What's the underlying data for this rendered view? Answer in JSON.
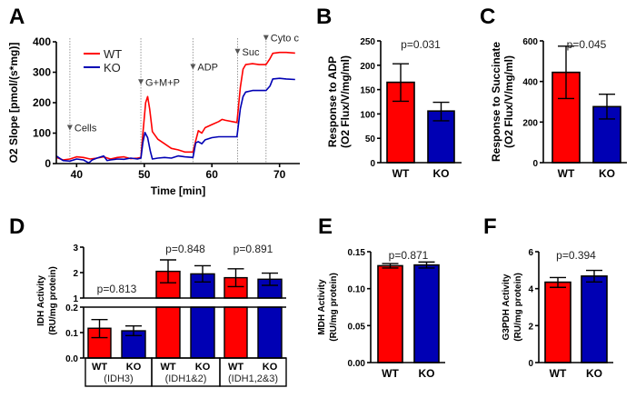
{
  "colors": {
    "wt": "#ff0000",
    "ko": "#0000b4",
    "marker": "#555555"
  },
  "chart_data": [
    {
      "id": "A",
      "type": "line",
      "panel_label": "A",
      "title": "",
      "xlabel": "Time [min]",
      "ylabel": "O2 Slope [pmol/(s*mg)]",
      "xlim": [
        37,
        73
      ],
      "ylim": [
        0,
        400
      ],
      "xticks": [
        40,
        50,
        60,
        70
      ],
      "yticks": [
        0,
        100,
        200,
        300,
        400
      ],
      "legend": {
        "position": "top-left",
        "entries": [
          "WT",
          "KO"
        ]
      },
      "annotations": [
        {
          "label": "Cells",
          "x": 39,
          "y": 100
        },
        {
          "label": "G+M+P",
          "x": 49.5,
          "y": 250
        },
        {
          "label": "ADP",
          "x": 57.2,
          "y": 300
        },
        {
          "label": "Suc",
          "x": 63.8,
          "y": 350
        },
        {
          "label": "Cyto c",
          "x": 68,
          "y": 395
        }
      ],
      "series": [
        {
          "name": "WT",
          "x": [
            37,
            38,
            39,
            40,
            41,
            42,
            43,
            44,
            45,
            46,
            47,
            48,
            49,
            49.5,
            49.8,
            50.2,
            50.5,
            50.8,
            51.2,
            52,
            53,
            54,
            55,
            56,
            57.2,
            57.6,
            58,
            58.5,
            59,
            60,
            61,
            61.5,
            62,
            63,
            63.7,
            64.2,
            64.6,
            65,
            66,
            67,
            68,
            68.6,
            69,
            70,
            71,
            72.3
          ],
          "y": [
            20,
            12,
            15,
            22,
            20,
            15,
            18,
            22,
            15,
            20,
            22,
            16,
            18,
            20,
            100,
            200,
            220,
            180,
            105,
            80,
            65,
            50,
            45,
            38,
            38,
            75,
            108,
            100,
            118,
            128,
            138,
            145,
            142,
            138,
            135,
            250,
            310,
            325,
            328,
            325,
            325,
            345,
            362,
            365,
            365,
            363
          ]
        },
        {
          "name": "KO",
          "x": [
            37,
            38,
            39,
            40,
            41,
            41.8,
            42.3,
            43,
            44,
            44.5,
            45,
            46,
            47,
            48,
            49,
            49.5,
            49.8,
            50.1,
            50.5,
            50.9,
            51.2,
            52,
            53,
            54,
            55,
            56,
            57.2,
            57.6,
            58,
            58.5,
            59,
            60,
            61,
            62,
            63,
            63.7,
            64.2,
            64.6,
            65,
            66,
            67,
            68,
            68.6,
            69,
            70,
            71,
            72.3
          ],
          "y": [
            25,
            10,
            8,
            15,
            12,
            2,
            12,
            18,
            25,
            10,
            12,
            15,
            14,
            18,
            15,
            18,
            70,
            102,
            85,
            40,
            15,
            18,
            20,
            18,
            25,
            22,
            20,
            68,
            72,
            65,
            78,
            85,
            88,
            88,
            88,
            88,
            180,
            220,
            235,
            240,
            240,
            240,
            255,
            278,
            280,
            278,
            276
          ]
        }
      ]
    },
    {
      "id": "B",
      "type": "bar",
      "panel_label": "B",
      "ylabel_line1": "Response to ADP",
      "ylabel_line2": "(O2 Flux/V/mg/ml)",
      "categories": [
        "WT",
        "KO"
      ],
      "values": [
        165,
        106
      ],
      "error_low": [
        126,
        86
      ],
      "error_high": [
        203,
        124
      ],
      "ylim": [
        0,
        250
      ],
      "yticks": [
        0,
        50,
        100,
        150,
        200,
        250
      ],
      "annotation": "p=0.031"
    },
    {
      "id": "C",
      "type": "bar",
      "panel_label": "C",
      "ylabel_line1": "Response to Succinate",
      "ylabel_line2": "(O2 Flux/V/mg/ml)",
      "categories": [
        "WT",
        "KO"
      ],
      "values": [
        445,
        276
      ],
      "error_low": [
        316,
        215
      ],
      "error_high": [
        574,
        337
      ],
      "ylim": [
        0,
        600
      ],
      "yticks": [
        0,
        200,
        400,
        600
      ],
      "annotation": "p=0.045"
    },
    {
      "id": "D",
      "type": "bar",
      "panel_label": "D",
      "ylabel_line1": "IDH Activity",
      "ylabel_line2": "(RU/mg protein)",
      "axis_break": true,
      "lower_ylim": [
        0,
        0.2
      ],
      "lower_yticks": [
        "0.0",
        "0.1",
        "0.2"
      ],
      "upper_ylim": [
        1,
        3
      ],
      "upper_yticks": [
        "1",
        "2",
        "3"
      ],
      "groups": [
        {
          "name": "(IDH3)",
          "categories": [
            "WT",
            "KO"
          ],
          "values": [
            0.117,
            0.107
          ],
          "error_low": [
            0.08,
            0.088
          ],
          "error_high": [
            0.151,
            0.126
          ],
          "annotation": "p=0.813"
        },
        {
          "name": "(IDH1&2)",
          "categories": [
            "WT",
            "KO"
          ],
          "values": [
            2.05,
            1.95
          ],
          "error_low": [
            1.6,
            1.63
          ],
          "error_high": [
            2.5,
            2.27
          ],
          "annotation": "p=0.848"
        },
        {
          "name": "(IDH1,2&3)",
          "categories": [
            "WT",
            "KO"
          ],
          "values": [
            1.8,
            1.74
          ],
          "error_low": [
            1.45,
            1.5
          ],
          "error_high": [
            2.15,
            1.98
          ],
          "annotation": "p=0.891"
        }
      ]
    },
    {
      "id": "E",
      "type": "bar",
      "panel_label": "E",
      "ylabel_line1": "MDH Activity",
      "ylabel_line2": "(RU/mg protein)",
      "categories": [
        "WT",
        "KO"
      ],
      "values": [
        0.131,
        0.132
      ],
      "error_low": [
        0.128,
        0.128
      ],
      "error_high": [
        0.134,
        0.136
      ],
      "ylim": [
        0,
        0.15
      ],
      "yticks": [
        "0.00",
        "0.05",
        "0.10",
        "0.15"
      ],
      "annotation": "p=0.871"
    },
    {
      "id": "F",
      "type": "bar",
      "panel_label": "F",
      "ylabel_line1": "G3PDH Activity",
      "ylabel_line2": "(RU/mg protein)",
      "categories": [
        "WT",
        "KO"
      ],
      "values": [
        4.35,
        4.68
      ],
      "error_low": [
        4.07,
        4.36
      ],
      "error_high": [
        4.6,
        4.99
      ],
      "ylim": [
        0,
        6
      ],
      "yticks": [
        "0",
        "2",
        "4",
        "6"
      ],
      "annotation": "p=0.394"
    }
  ]
}
